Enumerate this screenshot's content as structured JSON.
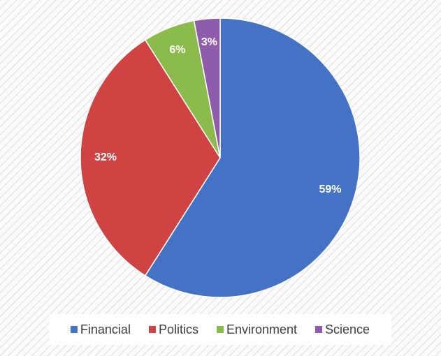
{
  "chart_data": {
    "type": "pie",
    "categories": [
      "Financial",
      "Politics",
      "Environment",
      "Science"
    ],
    "values": [
      59,
      32,
      6,
      3
    ],
    "value_labels": [
      "59%",
      "32%",
      "6%",
      "3%"
    ],
    "colors": [
      "#4472c4",
      "#d04343",
      "#8bbb4a",
      "#8f5cab"
    ],
    "legend": "bottom"
  }
}
